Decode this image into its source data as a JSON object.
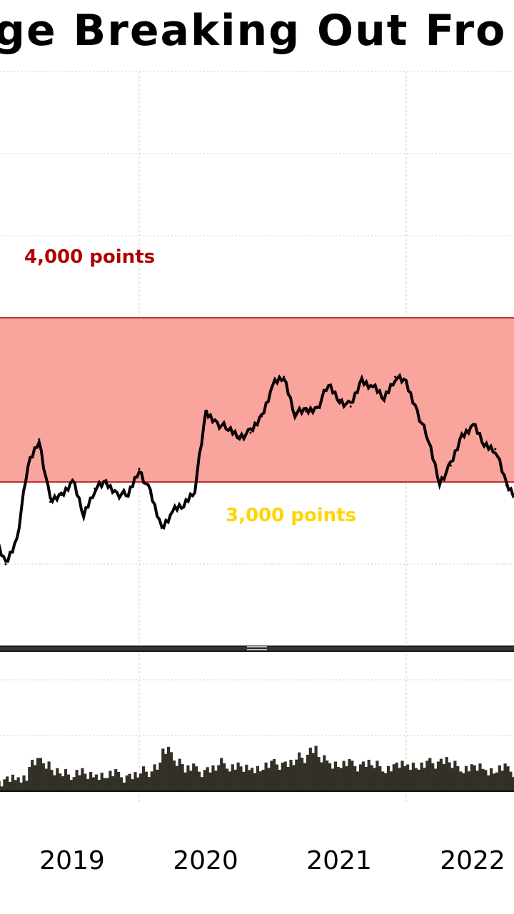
{
  "chart_data": [
    {
      "type": "line",
      "title": "ge Breaking Out Fro",
      "xlabel": "",
      "ylabel": "",
      "x_tick_labels": [
        "2019",
        "2020",
        "2021",
        "2022"
      ],
      "ylim": [
        2200,
        5700
      ],
      "grid": true,
      "band": {
        "low": 3000,
        "high": 4000,
        "low_label": "3,000 points",
        "high_label": "4,000 points",
        "fill_color": "#f9a59e",
        "edge_color": "#a00000",
        "high_label_color": "#b00000",
        "low_label_color": "#ffd500"
      },
      "series": [
        {
          "x": [
            "2018-12",
            "2019-01",
            "2019-02",
            "2019-03",
            "2019-04",
            "2019-05",
            "2019-06",
            "2019-07",
            "2019-08",
            "2019-09",
            "2019-10",
            "2019-11",
            "2019-12",
            "2020-01",
            "2020-02",
            "2020-03",
            "2020-04",
            "2020-05",
            "2020-06",
            "2020-07",
            "2020-08",
            "2020-09",
            "2020-10",
            "2020-11",
            "2020-12",
            "2021-01",
            "2021-02",
            "2021-03",
            "2021-04",
            "2021-05",
            "2021-06",
            "2021-07",
            "2021-08",
            "2021-09",
            "2021-10",
            "2021-11",
            "2021-12",
            "2022-01",
            "2022-02",
            "2022-03",
            "2022-04",
            "2022-05",
            "2022-06",
            "2022-07",
            "2022-08",
            "2022-09",
            "2022-10",
            "2022-11"
          ],
          "values": [
            2650,
            2500,
            2650,
            3100,
            3260,
            2880,
            2920,
            3010,
            2800,
            2960,
            2990,
            2930,
            2920,
            3080,
            2930,
            2720,
            2820,
            2860,
            2960,
            3420,
            3360,
            3320,
            3280,
            3300,
            3400,
            3590,
            3640,
            3420,
            3430,
            3450,
            3590,
            3500,
            3460,
            3620,
            3580,
            3510,
            3640,
            3600,
            3430,
            3250,
            3000,
            3100,
            3280,
            3350,
            3230,
            3200,
            2980,
            2900
          ],
          "color": "#1a0000"
        }
      ]
    },
    {
      "type": "area",
      "title": "",
      "series": [
        {
          "x": [
            "2018-12",
            "2019-01",
            "2019-02",
            "2019-03",
            "2019-04",
            "2019-05",
            "2019-06",
            "2019-07",
            "2019-08",
            "2019-09",
            "2019-10",
            "2019-11",
            "2019-12",
            "2020-01",
            "2020-02",
            "2020-03",
            "2020-04",
            "2020-05",
            "2020-06",
            "2020-07",
            "2020-08",
            "2020-09",
            "2020-10",
            "2020-11",
            "2020-12",
            "2021-01",
            "2021-02",
            "2021-03",
            "2021-04",
            "2021-05",
            "2021-06",
            "2021-07",
            "2021-08",
            "2021-09",
            "2021-10",
            "2021-11",
            "2021-12",
            "2022-01",
            "2022-02",
            "2022-03",
            "2022-04",
            "2022-05",
            "2022-06",
            "2022-07",
            "2022-08",
            "2022-09",
            "2022-10",
            "2022-11"
          ],
          "values": [
            0.15,
            0.2,
            0.25,
            0.5,
            0.5,
            0.35,
            0.3,
            0.35,
            0.25,
            0.3,
            0.3,
            0.25,
            0.28,
            0.35,
            0.45,
            0.7,
            0.55,
            0.4,
            0.35,
            0.4,
            0.5,
            0.45,
            0.38,
            0.42,
            0.45,
            0.48,
            0.5,
            0.6,
            0.75,
            0.55,
            0.5,
            0.48,
            0.45,
            0.5,
            0.45,
            0.42,
            0.45,
            0.48,
            0.45,
            0.5,
            0.55,
            0.45,
            0.42,
            0.4,
            0.38,
            0.4,
            0.35,
            0.4
          ],
          "color": "#333028"
        }
      ]
    }
  ]
}
